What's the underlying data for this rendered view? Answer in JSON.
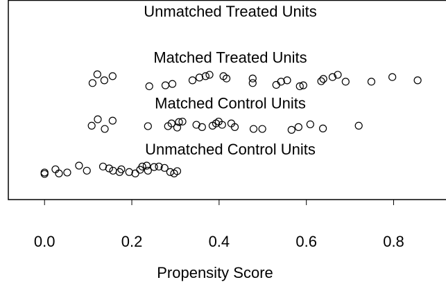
{
  "chart_data": {
    "type": "scatter",
    "x_label": "Propensity Score",
    "xlim": [
      -0.083,
      0.92
    ],
    "xticks": [
      {
        "value": 0,
        "label": "0.0"
      },
      {
        "value": 0.2,
        "label": "0.2"
      },
      {
        "value": 0.4,
        "label": "0.4"
      },
      {
        "value": 0.6,
        "label": "0.6"
      },
      {
        "value": 0.8,
        "label": "0.8"
      }
    ],
    "ylim": [
      0.35,
      4.7
    ],
    "color": "#000000",
    "series": [
      {
        "name": "Unmatched Treated Units",
        "x": [],
        "y": []
      },
      {
        "name": "Matched Treated Units",
        "x": [
          0.11,
          0.121,
          0.137,
          0.156,
          0.24,
          0.277,
          0.293,
          0.339,
          0.355,
          0.369,
          0.378,
          0.41,
          0.417,
          0.477,
          0.477,
          0.531,
          0.542,
          0.556,
          0.585,
          0.593,
          0.634,
          0.639,
          0.66,
          0.672,
          0.69,
          0.749,
          0.797,
          0.855
        ],
        "y": [
          2.89,
          3.08,
          2.95,
          3.04,
          2.82,
          2.84,
          2.87,
          2.95,
          3.01,
          3.04,
          3.07,
          3.04,
          2.99,
          2.99,
          2.89,
          2.85,
          2.92,
          2.95,
          2.82,
          2.84,
          2.93,
          2.98,
          3.02,
          3.07,
          2.92,
          2.92,
          3.02,
          2.95
        ]
      },
      {
        "name": "Matched Control Units",
        "x": [
          0.108,
          0.122,
          0.138,
          0.156,
          0.237,
          0.283,
          0.291,
          0.304,
          0.308,
          0.316,
          0.348,
          0.361,
          0.385,
          0.393,
          0.399,
          0.407,
          0.428,
          0.436,
          0.479,
          0.499,
          0.566,
          0.582,
          0.609,
          0.638,
          0.72
        ],
        "y": [
          1.96,
          2.1,
          1.89,
          2.07,
          1.95,
          1.95,
          2.01,
          1.92,
          2.04,
          2.05,
          1.98,
          1.93,
          1.96,
          2.01,
          2.05,
          1.98,
          2.01,
          1.93,
          1.89,
          1.89,
          1.87,
          1.93,
          1.99,
          1.9,
          1.96
        ]
      },
      {
        "name": "Unmatched Control Units",
        "x": [
          0,
          0,
          0.025,
          0.033,
          0.052,
          0.079,
          0.097,
          0.134,
          0.148,
          0.157,
          0.172,
          0.176,
          0.194,
          0.208,
          0.219,
          0.224,
          0.234,
          0.237,
          0.251,
          0.262,
          0.275,
          0.288,
          0.297,
          0.304
        ],
        "y": [
          0.94,
          0.91,
          1.01,
          0.92,
          0.94,
          1.09,
          0.98,
          1.07,
          1.03,
          0.98,
          0.95,
          1.01,
          0.95,
          0.92,
          1.0,
          1.07,
          1.09,
          0.98,
          1.06,
          1.07,
          1.04,
          0.95,
          0.92,
          0.97
        ]
      }
    ]
  }
}
